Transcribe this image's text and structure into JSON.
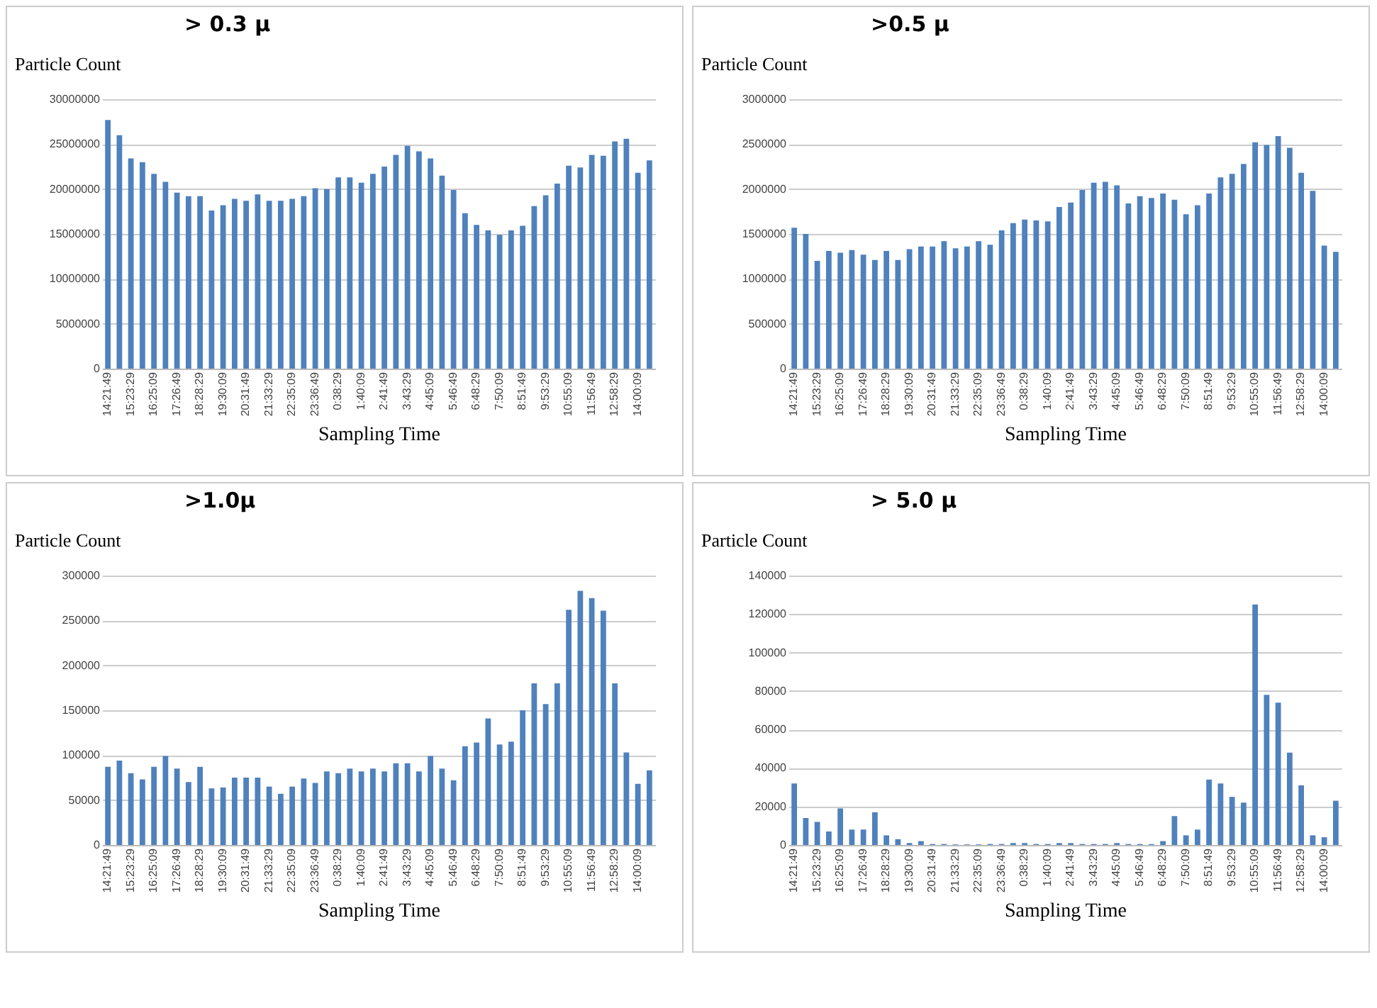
{
  "chart_data": [
    {
      "type": "bar",
      "title": "> 0.3 µ",
      "ylabel": "Particle Count",
      "xlabel": "Sampling Time",
      "color": "#4f81bd",
      "grid": "y",
      "categories": [
        "14:21:49",
        null,
        "15:23:29",
        null,
        "16:25:09",
        null,
        "17:26:49",
        null,
        "18:28:29",
        null,
        "19:30:09",
        null,
        "20:31:49",
        null,
        "21:33:29",
        null,
        "22:35:09",
        null,
        "23:36:49",
        null,
        "0:38:29",
        null,
        "1:40:09",
        null,
        "2:41:49",
        null,
        "3:43:29",
        null,
        "4:45:09",
        null,
        "5:46:49",
        null,
        "6:48:29",
        null,
        "7:50:09",
        null,
        "8:51:49",
        null,
        "9:53:29",
        null,
        "10:55:09",
        null,
        "11:56:49",
        null,
        "12:58:29",
        null,
        "14:00:09",
        null
      ],
      "values": [
        27700000,
        26000000,
        23400000,
        23000000,
        21700000,
        20800000,
        19600000,
        19200000,
        19200000,
        17600000,
        18200000,
        18900000,
        18700000,
        19400000,
        18700000,
        18700000,
        18900000,
        19200000,
        20100000,
        20000000,
        21300000,
        21300000,
        20700000,
        21700000,
        22500000,
        23800000,
        24800000,
        24200000,
        23400000,
        21500000,
        19900000,
        17300000,
        16000000,
        15400000,
        14900000,
        15400000,
        15900000,
        18100000,
        19300000,
        20600000,
        22600000,
        22400000,
        23800000,
        23700000,
        25300000,
        25600000,
        21800000,
        23200000
      ],
      "ylim": [
        0,
        30000000
      ],
      "yticks": [
        0,
        5000000,
        10000000,
        15000000,
        20000000,
        25000000,
        30000000
      ]
    },
    {
      "type": "bar",
      "title": ">0.5 µ",
      "ylabel": "Particle Count",
      "xlabel": "Sampling Time",
      "color": "#4f81bd",
      "grid": "y",
      "categories": [
        "14:21:49",
        null,
        "15:23:29",
        null,
        "16:25:09",
        null,
        "17:26:49",
        null,
        "18:28:29",
        null,
        "19:30:09",
        null,
        "20:31:49",
        null,
        "21:33:29",
        null,
        "22:35:09",
        null,
        "23:36:49",
        null,
        "0:38:29",
        null,
        "1:40:09",
        null,
        "2:41:49",
        null,
        "3:43:29",
        null,
        "4:45:09",
        null,
        "5:46:49",
        null,
        "6:48:29",
        null,
        "7:50:09",
        null,
        "8:51:49",
        null,
        "9:53:29",
        null,
        "10:55:09",
        null,
        "11:56:49",
        null,
        "12:58:29",
        null,
        "14:00:09",
        null
      ],
      "values": [
        1570000,
        1500000,
        1200000,
        1310000,
        1290000,
        1320000,
        1270000,
        1210000,
        1310000,
        1210000,
        1330000,
        1360000,
        1360000,
        1420000,
        1340000,
        1360000,
        1420000,
        1380000,
        1540000,
        1620000,
        1660000,
        1650000,
        1640000,
        1800000,
        1850000,
        1990000,
        2070000,
        2080000,
        2040000,
        1840000,
        1920000,
        1900000,
        1950000,
        1880000,
        1720000,
        1820000,
        1950000,
        2130000,
        2170000,
        2280000,
        2520000,
        2490000,
        2590000,
        2460000,
        2180000,
        1980000,
        1370000,
        1300000
      ],
      "ylim": [
        0,
        3000000
      ],
      "yticks": [
        0,
        500000,
        1000000,
        1500000,
        2000000,
        2500000,
        3000000
      ]
    },
    {
      "type": "bar",
      "title": ">1.0µ",
      "ylabel": "Particle Count",
      "xlabel": "Sampling Time",
      "color": "#4f81bd",
      "grid": "y",
      "categories": [
        "14:21:49",
        null,
        "15:23:29",
        null,
        "16:25:09",
        null,
        "17:26:49",
        null,
        "18:28:29",
        null,
        "19:30:09",
        null,
        "20:31:49",
        null,
        "21:33:29",
        null,
        "22:35:09",
        null,
        "23:36:49",
        null,
        "0:38:29",
        null,
        "1:40:09",
        null,
        "2:41:49",
        null,
        "3:43:29",
        null,
        "4:45:09",
        null,
        "5:46:49",
        null,
        "6:48:29",
        null,
        "7:50:09",
        null,
        "8:51:49",
        null,
        "9:53:29",
        null,
        "10:55:09",
        null,
        "11:56:49",
        null,
        "12:58:29",
        null,
        "14:00:09",
        null
      ],
      "values": [
        87000,
        94000,
        80000,
        73000,
        87000,
        99000,
        85000,
        70000,
        87000,
        63000,
        64000,
        75000,
        75000,
        75000,
        65000,
        57000,
        65000,
        74000,
        69000,
        82000,
        80000,
        85000,
        82000,
        85000,
        82000,
        91000,
        91000,
        82000,
        99000,
        85000,
        72000,
        110000,
        114000,
        141000,
        112000,
        115000,
        150000,
        180000,
        157000,
        180000,
        262000,
        283000,
        275000,
        261000,
        180000,
        103000,
        68000,
        83000
      ],
      "ylim": [
        0,
        300000
      ],
      "yticks": [
        0,
        50000,
        100000,
        150000,
        200000,
        250000,
        300000
      ]
    },
    {
      "type": "bar",
      "title": "> 5.0 µ",
      "ylabel": "Particle Count",
      "xlabel": "Sampling Time",
      "color": "#4f81bd",
      "grid": "y",
      "categories": [
        "14:21:49",
        null,
        "15:23:29",
        null,
        "16:25:09",
        null,
        "17:26:49",
        null,
        "18:28:29",
        null,
        "19:30:09",
        null,
        "20:31:49",
        null,
        "21:33:29",
        null,
        "22:35:09",
        null,
        "23:36:49",
        null,
        "0:38:29",
        null,
        "1:40:09",
        null,
        "2:41:49",
        null,
        "3:43:29",
        null,
        "4:45:09",
        null,
        "5:46:49",
        null,
        "6:48:29",
        null,
        "7:50:09",
        null,
        "8:51:49",
        null,
        "9:53:29",
        null,
        "10:55:09",
        null,
        "11:56:49",
        null,
        "12:58:29",
        null,
        "14:00:09",
        null
      ],
      "values": [
        32000,
        14000,
        12000,
        7000,
        19000,
        8000,
        8000,
        17000,
        5000,
        3000,
        1000,
        2000,
        500,
        500,
        300,
        300,
        300,
        500,
        500,
        1000,
        1000,
        500,
        500,
        1000,
        1000,
        500,
        500,
        500,
        1000,
        500,
        500,
        500,
        2000,
        15000,
        5000,
        8000,
        34000,
        32000,
        25000,
        22000,
        125000,
        78000,
        74000,
        48000,
        31000,
        5000,
        4000,
        23000
      ],
      "ylim": [
        0,
        140000
      ],
      "yticks": [
        0,
        20000,
        40000,
        60000,
        80000,
        100000,
        120000,
        140000
      ]
    }
  ]
}
